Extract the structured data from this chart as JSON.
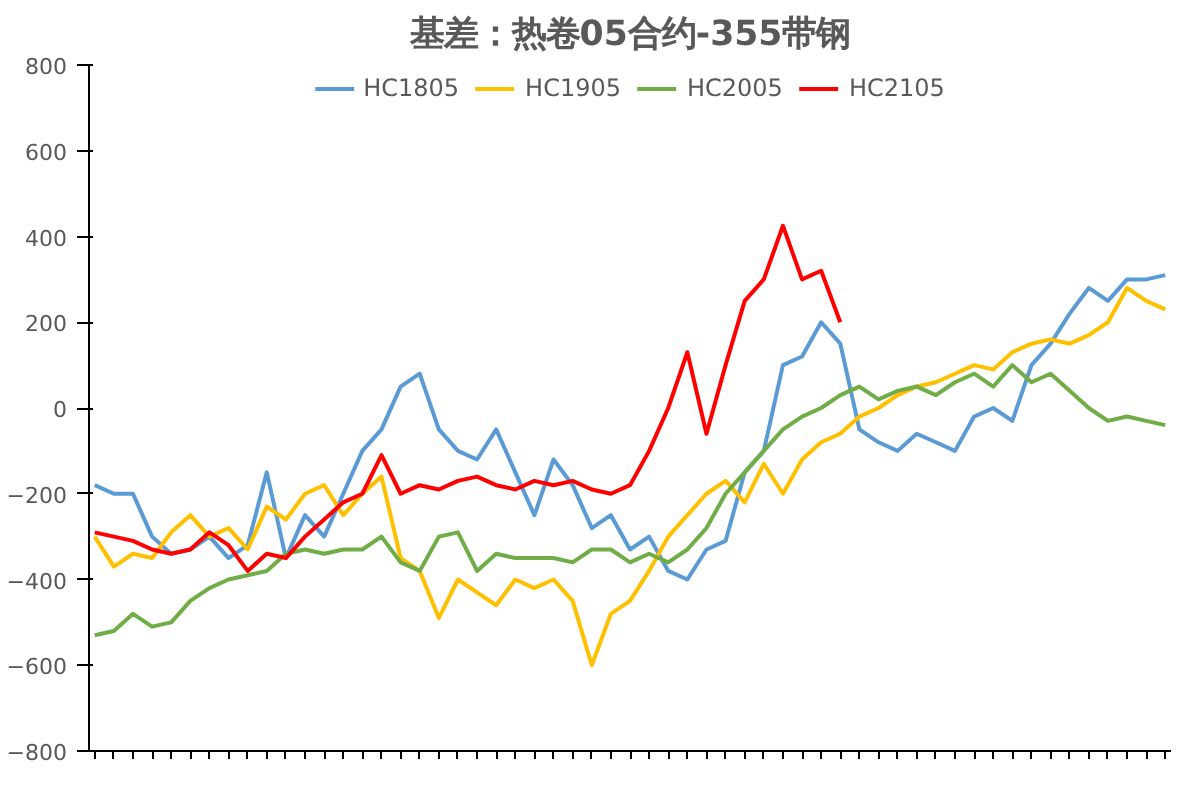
{
  "chart_data": {
    "type": "line",
    "title": "基差：热卷05合约-355带钢",
    "categories": [
      null,
      null,
      null,
      null,
      null,
      null,
      null,
      null,
      null,
      null,
      null,
      null,
      null,
      null,
      null,
      null,
      null,
      null,
      null,
      null,
      null,
      null,
      null,
      null,
      null,
      null,
      null,
      null,
      null,
      null,
      null,
      null,
      null,
      null,
      null,
      null,
      null,
      null,
      null,
      null,
      null,
      null,
      null,
      null,
      null,
      null,
      null,
      null,
      null,
      null,
      null,
      null,
      null,
      null,
      null,
      null,
      null
    ],
    "series": [
      {
        "name": "HC1805",
        "color": "#5b9bd5",
        "values": [
          -180,
          -200,
          -200,
          -300,
          -340,
          -330,
          -300,
          -350,
          -320,
          -150,
          -350,
          -250,
          -300,
          -200,
          -100,
          -50,
          50,
          80,
          -50,
          -100,
          -120,
          -50,
          -150,
          -250,
          -120,
          -180,
          -280,
          -250,
          -330,
          -300,
          -380,
          -400,
          -330,
          -310,
          -150,
          -100,
          100,
          120,
          200,
          150,
          -50,
          -80,
          -100,
          -60,
          -80,
          -100,
          -20,
          0,
          -30,
          100,
          150,
          220,
          280,
          250,
          300,
          300,
          310
        ]
      },
      {
        "name": "HC1905",
        "color": "#ffc000",
        "values": [
          -300,
          -370,
          -340,
          -350,
          -290,
          -250,
          -300,
          -280,
          -330,
          -230,
          -260,
          -200,
          -180,
          -250,
          -200,
          -160,
          -350,
          -380,
          -490,
          -400,
          -430,
          -460,
          -400,
          -420,
          -400,
          -450,
          -600,
          -480,
          -450,
          -380,
          -300,
          -250,
          -200,
          -170,
          -220,
          -130,
          -200,
          -120,
          -80,
          -60,
          -20,
          0,
          30,
          50,
          60,
          80,
          100,
          90,
          130,
          150,
          160,
          150,
          170,
          200,
          280,
          250,
          230
        ]
      },
      {
        "name": "HC2005",
        "color": "#70ad47",
        "values": [
          -530,
          -520,
          -480,
          -510,
          -500,
          -450,
          -420,
          -400,
          -390,
          -380,
          -340,
          -330,
          -340,
          -330,
          -330,
          -300,
          -360,
          -380,
          -300,
          -290,
          -380,
          -340,
          -350,
          -350,
          -350,
          -360,
          -330,
          -330,
          -360,
          -340,
          -360,
          -330,
          -280,
          -200,
          -150,
          -100,
          -50,
          -20,
          0,
          30,
          50,
          20,
          40,
          50,
          30,
          60,
          80,
          50,
          100,
          60,
          80,
          40,
          0,
          -30,
          -20,
          -30,
          -40
        ]
      },
      {
        "name": "HC2105",
        "color": "#ff0000",
        "values": [
          -290,
          -300,
          -310,
          -330,
          -340,
          -330,
          -290,
          -320,
          -380,
          -340,
          -350,
          -300,
          -260,
          -220,
          -200,
          -110,
          -200,
          -180,
          -190,
          -170,
          -160,
          -180,
          -190,
          -170,
          -180,
          -170,
          -190,
          -200,
          -180,
          -100,
          0,
          130,
          -60,
          100,
          250,
          300,
          425,
          300,
          320,
          200,
          null,
          null,
          null,
          null,
          null,
          null,
          null,
          null,
          null,
          null,
          null,
          null,
          null,
          null,
          null,
          null,
          null
        ]
      }
    ],
    "ylim": [
      -800,
      800
    ],
    "yticks": [
      -800,
      -600,
      -400,
      -200,
      0,
      200,
      400,
      600,
      800
    ],
    "grid": false,
    "legend": "top",
    "tick_labels": "y",
    "marker": "none",
    "line_style": "solid"
  }
}
